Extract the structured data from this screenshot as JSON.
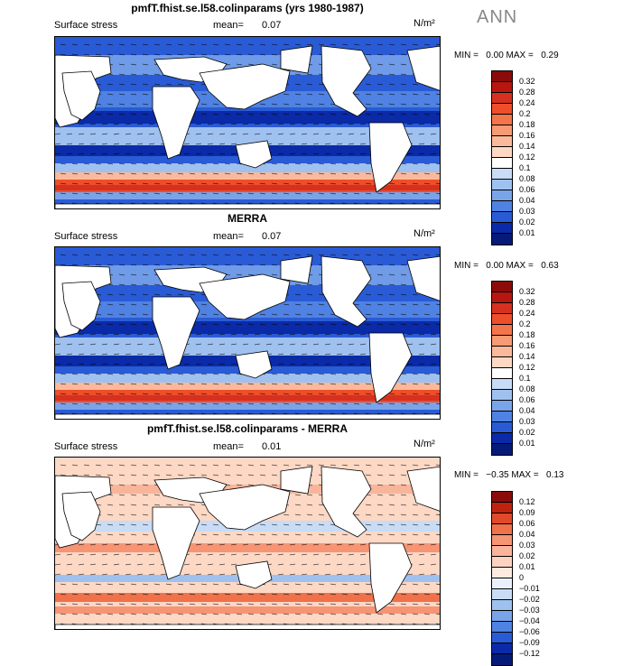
{
  "season": "ANN",
  "panels": [
    {
      "title": "pmfT.fhist.se.l58.colinparams (yrs 1980-1987)",
      "variable": "Surface stress",
      "mean_label": "mean=",
      "mean_value": "0.07",
      "units": "N/m²",
      "min_label": "MIN =",
      "min_value": "0.00",
      "max_label": "MAX =",
      "max_value": "0.29",
      "colorbar": {
        "labels": [
          "0.32",
          "0.28",
          "0.24",
          "0.2",
          "0.18",
          "0.16",
          "0.14",
          "0.12",
          "0.1",
          "0.08",
          "0.06",
          "0.04",
          "0.03",
          "0.02",
          "0.01"
        ],
        "colors": [
          "#8b0a0a",
          "#b8160f",
          "#d7301f",
          "#ee4e2a",
          "#f4754a",
          "#f89a73",
          "#fbb99c",
          "#fcd8c5",
          "#ffffff",
          "#c8dcf6",
          "#9fc1f0",
          "#7aa4ea",
          "#4f82e2",
          "#2a5bd6",
          "#0a2aa8",
          "#061a78"
        ]
      }
    },
    {
      "title": "MERRA",
      "variable": "Surface stress",
      "mean_label": "mean=",
      "mean_value": "0.07",
      "units": "N/m²",
      "min_label": "MIN =",
      "min_value": "0.00",
      "max_label": "MAX =",
      "max_value": "0.63",
      "colorbar": {
        "labels": [
          "0.32",
          "0.28",
          "0.24",
          "0.2",
          "0.18",
          "0.16",
          "0.14",
          "0.12",
          "0.1",
          "0.08",
          "0.06",
          "0.04",
          "0.03",
          "0.02",
          "0.01"
        ],
        "colors": [
          "#8b0a0a",
          "#b8160f",
          "#d7301f",
          "#ee4e2a",
          "#f4754a",
          "#f89a73",
          "#fbb99c",
          "#fcd8c5",
          "#ffffff",
          "#c8dcf6",
          "#9fc1f0",
          "#7aa4ea",
          "#4f82e2",
          "#2a5bd6",
          "#0a2aa8",
          "#061a78"
        ]
      }
    },
    {
      "title": "pmfT.fhist.se.l58.colinparams - MERRA",
      "variable": "Surface stress",
      "mean_label": "mean=",
      "mean_value": "0.01",
      "units": "N/m²",
      "min_label": "MIN =",
      "min_value": "−0.35",
      "max_label": "MAX =",
      "max_value": "0.13",
      "colorbar": {
        "labels": [
          "0.12",
          "0.09",
          "0.06",
          "0.04",
          "0.03",
          "0.02",
          "0.01",
          "0",
          "−0.01",
          "−0.02",
          "−0.03",
          "−0.04",
          "−0.06",
          "−0.09",
          "−0.12"
        ],
        "colors": [
          "#8b0a0a",
          "#c0220f",
          "#e04a2a",
          "#f0714a",
          "#f69474",
          "#f9b59b",
          "#fcd3c2",
          "#fde9e0",
          "#eaf1fb",
          "#c8dcf6",
          "#9fc1f0",
          "#7aa4ea",
          "#4f82e2",
          "#2a5bd6",
          "#0a2aa8",
          "#061a78"
        ]
      }
    }
  ]
}
